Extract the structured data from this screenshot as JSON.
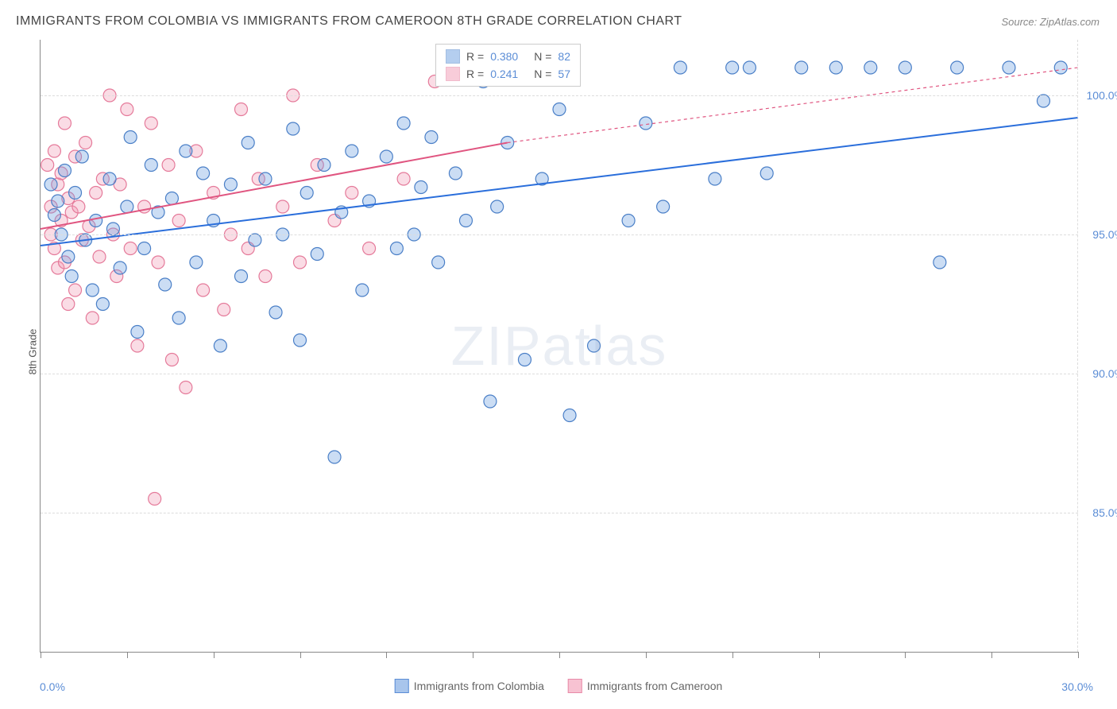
{
  "title": "IMMIGRANTS FROM COLOMBIA VS IMMIGRANTS FROM CAMEROON 8TH GRADE CORRELATION CHART",
  "source": "Source: ZipAtlas.com",
  "ylabel": "8th Grade",
  "watermark": "ZIPatlas",
  "chart": {
    "type": "scatter",
    "xlim": [
      0,
      30
    ],
    "ylim": [
      80,
      102
    ],
    "x_ticks": [
      0,
      2.5,
      5,
      7.5,
      10,
      12.5,
      15,
      17.5,
      20,
      22.5,
      25,
      27.5,
      30
    ],
    "x_tick_labels": {
      "0": "0.0%",
      "30": "30.0%"
    },
    "y_ticks": [
      85,
      90,
      95,
      100
    ],
    "y_tick_labels": {
      "85": "85.0%",
      "90": "90.0%",
      "95": "95.0%",
      "100": "100.0%"
    },
    "background_color": "#ffffff",
    "grid_color": "#dddddd",
    "marker_radius": 8,
    "marker_fill_opacity": 0.35,
    "marker_stroke_width": 1.2,
    "series": [
      {
        "name": "Immigrants from Colombia",
        "color": "#6b9fe0",
        "stroke_color": "#4a7fc7",
        "R": "0.380",
        "N": "82",
        "trendline": {
          "x1": 0,
          "y1": 94.6,
          "x2": 30,
          "y2": 99.2,
          "color": "#2a6edb",
          "width": 2
        },
        "points": [
          [
            0.3,
            96.8
          ],
          [
            0.4,
            95.7
          ],
          [
            0.5,
            96.2
          ],
          [
            0.6,
            95.0
          ],
          [
            0.7,
            97.3
          ],
          [
            0.8,
            94.2
          ],
          [
            0.9,
            93.5
          ],
          [
            1.0,
            96.5
          ],
          [
            1.2,
            97.8
          ],
          [
            1.3,
            94.8
          ],
          [
            1.5,
            93.0
          ],
          [
            1.6,
            95.5
          ],
          [
            1.8,
            92.5
          ],
          [
            2.0,
            97.0
          ],
          [
            2.1,
            95.2
          ],
          [
            2.3,
            93.8
          ],
          [
            2.5,
            96.0
          ],
          [
            2.6,
            98.5
          ],
          [
            2.8,
            91.5
          ],
          [
            3.0,
            94.5
          ],
          [
            3.2,
            97.5
          ],
          [
            3.4,
            95.8
          ],
          [
            3.6,
            93.2
          ],
          [
            3.8,
            96.3
          ],
          [
            4.0,
            92.0
          ],
          [
            4.2,
            98.0
          ],
          [
            4.5,
            94.0
          ],
          [
            4.7,
            97.2
          ],
          [
            5.0,
            95.5
          ],
          [
            5.2,
            91.0
          ],
          [
            5.5,
            96.8
          ],
          [
            5.8,
            93.5
          ],
          [
            6.0,
            98.3
          ],
          [
            6.2,
            94.8
          ],
          [
            6.5,
            97.0
          ],
          [
            6.8,
            92.2
          ],
          [
            7.0,
            95.0
          ],
          [
            7.3,
            98.8
          ],
          [
            7.5,
            91.2
          ],
          [
            7.7,
            96.5
          ],
          [
            8.0,
            94.3
          ],
          [
            8.2,
            97.5
          ],
          [
            8.5,
            87.0
          ],
          [
            8.7,
            95.8
          ],
          [
            9.0,
            98.0
          ],
          [
            9.3,
            93.0
          ],
          [
            9.5,
            96.2
          ],
          [
            10.0,
            97.8
          ],
          [
            10.3,
            94.5
          ],
          [
            10.5,
            99.0
          ],
          [
            10.8,
            95.0
          ],
          [
            11.0,
            96.7
          ],
          [
            11.3,
            98.5
          ],
          [
            11.5,
            94.0
          ],
          [
            12.0,
            97.2
          ],
          [
            12.3,
            95.5
          ],
          [
            12.8,
            100.5
          ],
          [
            13.0,
            89.0
          ],
          [
            13.2,
            96.0
          ],
          [
            13.5,
            98.3
          ],
          [
            14.0,
            90.5
          ],
          [
            14.5,
            97.0
          ],
          [
            15.0,
            99.5
          ],
          [
            15.3,
            88.5
          ],
          [
            16.0,
            91.0
          ],
          [
            17.0,
            95.5
          ],
          [
            17.5,
            99.0
          ],
          [
            18.0,
            96.0
          ],
          [
            18.5,
            101.0
          ],
          [
            19.5,
            97.0
          ],
          [
            20.0,
            101.0
          ],
          [
            20.5,
            101.0
          ],
          [
            21.0,
            97.2
          ],
          [
            22.0,
            101.0
          ],
          [
            23.0,
            101.0
          ],
          [
            24.0,
            101.0
          ],
          [
            25.0,
            101.0
          ],
          [
            26.0,
            94.0
          ],
          [
            26.5,
            101.0
          ],
          [
            28.0,
            101.0
          ],
          [
            29.0,
            99.8
          ],
          [
            29.5,
            101.0
          ]
        ]
      },
      {
        "name": "Immigrants from Cameroon",
        "color": "#f29bb5",
        "stroke_color": "#e57a9a",
        "R": "0.241",
        "N": "57",
        "trendline": {
          "x1": 0,
          "y1": 95.2,
          "x2": 13.5,
          "y2": 98.3,
          "dashed_to": 30,
          "y_dashed_end": 101.0,
          "color": "#e05580",
          "width": 2
        },
        "points": [
          [
            0.2,
            97.5
          ],
          [
            0.3,
            96.0
          ],
          [
            0.3,
            95.0
          ],
          [
            0.4,
            98.0
          ],
          [
            0.4,
            94.5
          ],
          [
            0.5,
            96.8
          ],
          [
            0.5,
            93.8
          ],
          [
            0.6,
            97.2
          ],
          [
            0.6,
            95.5
          ],
          [
            0.7,
            99.0
          ],
          [
            0.7,
            94.0
          ],
          [
            0.8,
            96.3
          ],
          [
            0.8,
            92.5
          ],
          [
            0.9,
            95.8
          ],
          [
            1.0,
            97.8
          ],
          [
            1.0,
            93.0
          ],
          [
            1.1,
            96.0
          ],
          [
            1.2,
            94.8
          ],
          [
            1.3,
            98.3
          ],
          [
            1.4,
            95.3
          ],
          [
            1.5,
            92.0
          ],
          [
            1.6,
            96.5
          ],
          [
            1.7,
            94.2
          ],
          [
            1.8,
            97.0
          ],
          [
            2.0,
            100.0
          ],
          [
            2.1,
            95.0
          ],
          [
            2.2,
            93.5
          ],
          [
            2.3,
            96.8
          ],
          [
            2.5,
            99.5
          ],
          [
            2.6,
            94.5
          ],
          [
            2.8,
            91.0
          ],
          [
            3.0,
            96.0
          ],
          [
            3.2,
            99.0
          ],
          [
            3.3,
            85.5
          ],
          [
            3.4,
            94.0
          ],
          [
            3.7,
            97.5
          ],
          [
            3.8,
            90.5
          ],
          [
            4.0,
            95.5
          ],
          [
            4.2,
            89.5
          ],
          [
            4.5,
            98.0
          ],
          [
            4.7,
            93.0
          ],
          [
            5.0,
            96.5
          ],
          [
            5.3,
            92.3
          ],
          [
            5.5,
            95.0
          ],
          [
            5.8,
            99.5
          ],
          [
            6.0,
            94.5
          ],
          [
            6.3,
            97.0
          ],
          [
            6.5,
            93.5
          ],
          [
            7.0,
            96.0
          ],
          [
            7.3,
            100.0
          ],
          [
            7.5,
            94.0
          ],
          [
            8.0,
            97.5
          ],
          [
            8.5,
            95.5
          ],
          [
            9.0,
            96.5
          ],
          [
            9.5,
            94.5
          ],
          [
            10.5,
            97.0
          ],
          [
            11.4,
            100.5
          ]
        ]
      }
    ]
  },
  "bottom_legend": [
    {
      "label": "Immigrants from Colombia",
      "fill": "#a8c5ec",
      "border": "#5b8dd6"
    },
    {
      "label": "Immigrants from Cameroon",
      "fill": "#f7c2d2",
      "border": "#e88aa8"
    }
  ]
}
